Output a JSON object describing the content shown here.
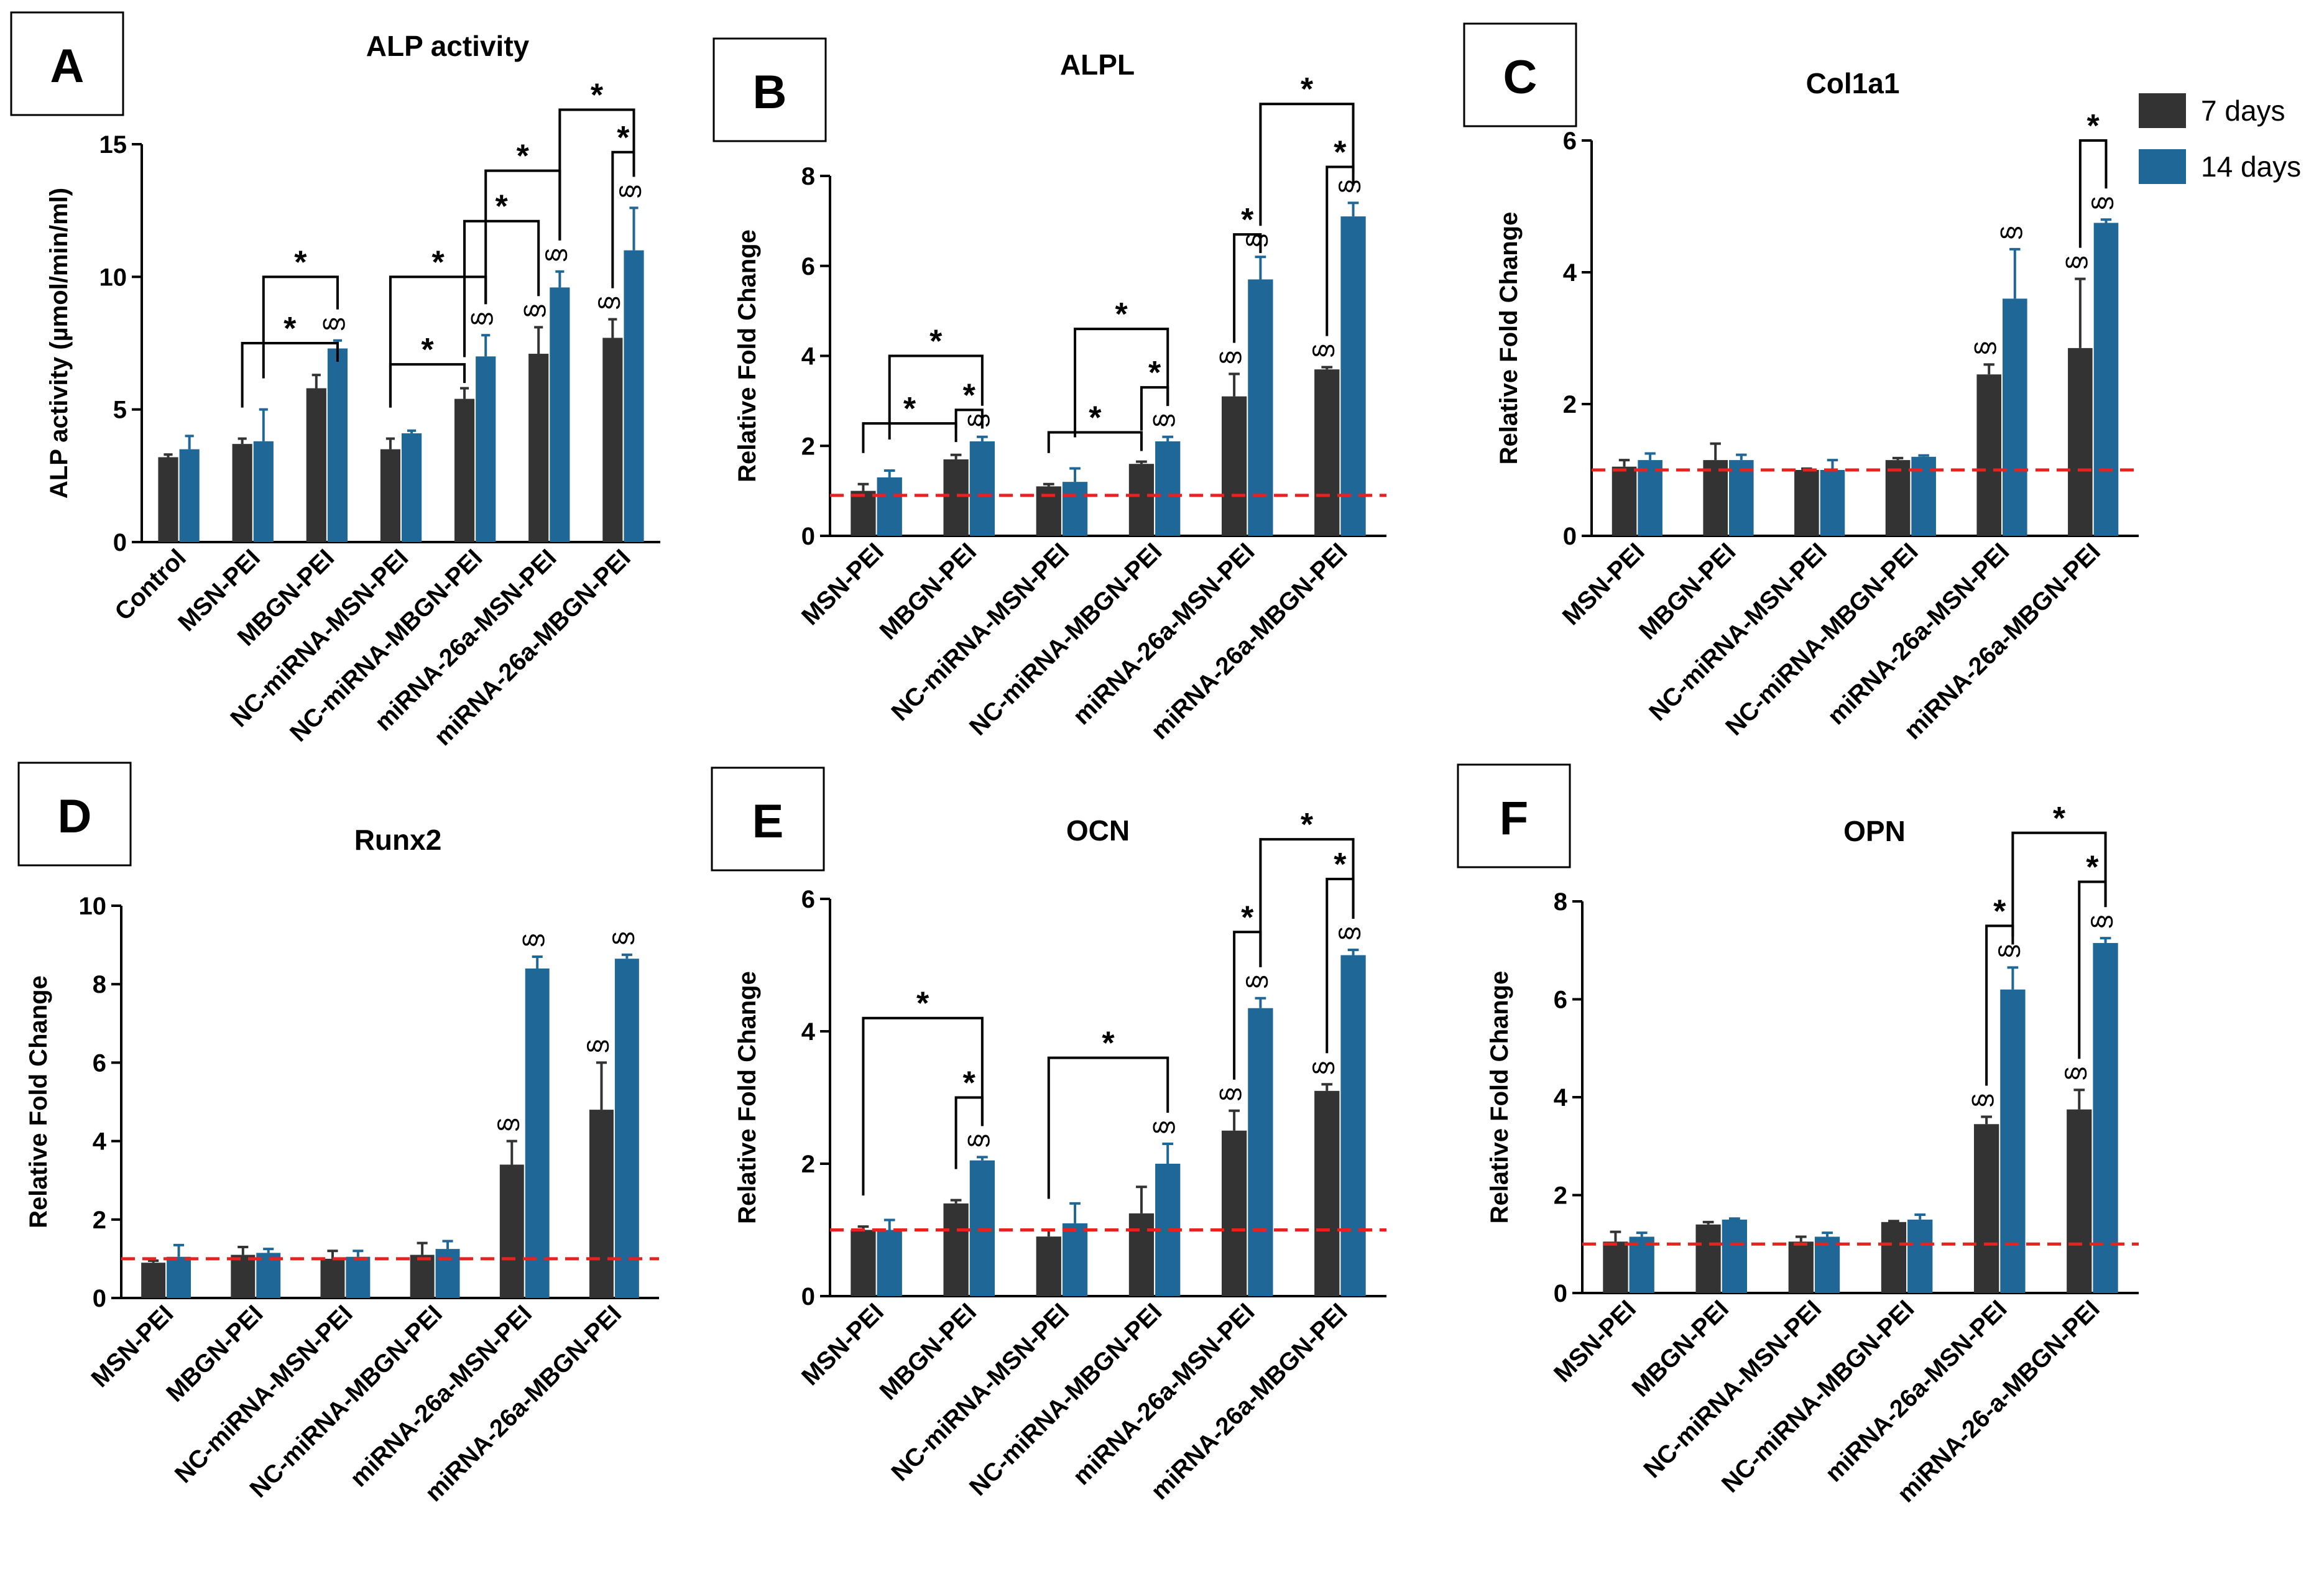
{
  "legend": {
    "items": [
      {
        "label": "7 days",
        "color": "#333333"
      },
      {
        "label": "14 days",
        "color": "#1F6796"
      }
    ]
  },
  "colors": {
    "series_7d": "#333333",
    "series_14d": "#1F6796",
    "reference_line": "#E8231F",
    "annotation": "#000000"
  },
  "chart_data": [
    {
      "panel": "A",
      "type": "bar",
      "title": "ALP activity",
      "ylabel": "ALP activity (µmol/min/ml)",
      "ylim": [
        0,
        15
      ],
      "yticks": [
        0,
        5,
        10,
        15
      ],
      "reference_line": null,
      "categories": [
        "Control",
        "MSN-PEI",
        "MBGN-PEI",
        "NC-miRNA-MSN-PEI",
        "NC-miRNA-MBGN-PEI",
        "miRNA-26a-MSN-PEI",
        "miRNA-26a-MBGN-PEI"
      ],
      "series": [
        {
          "name": "7 days",
          "values": [
            3.2,
            3.7,
            5.8,
            3.5,
            5.4,
            7.1,
            7.7
          ],
          "errors": [
            0.1,
            0.2,
            0.5,
            0.4,
            0.4,
            1.0,
            0.7
          ],
          "marks": [
            "",
            "",
            "",
            "",
            "",
            "§",
            "§"
          ]
        },
        {
          "name": "14 days",
          "values": [
            3.5,
            3.8,
            7.3,
            4.1,
            7.0,
            9.6,
            11.0
          ],
          "errors": [
            0.5,
            1.2,
            0.3,
            0.1,
            0.8,
            0.6,
            1.6
          ],
          "marks": [
            "",
            "",
            "§",
            "",
            "§",
            "§",
            "§"
          ]
        }
      ],
      "brackets": [
        {
          "from": [
            1,
            0
          ],
          "to": [
            2,
            1
          ],
          "level": 7.5,
          "label": "*"
        },
        {
          "from": [
            1,
            1
          ],
          "to": [
            2,
            1
          ],
          "level": 10.0,
          "label": "*"
        },
        {
          "from": [
            3,
            0
          ],
          "to": [
            4,
            0
          ],
          "level": 6.7,
          "label": "*"
        },
        {
          "from": [
            3,
            0
          ],
          "to": [
            4,
            1
          ],
          "level": 10.0,
          "label": "*"
        },
        {
          "from": [
            4,
            0
          ],
          "to": [
            5,
            0
          ],
          "level": 12.1,
          "label": "*"
        },
        {
          "from": [
            4,
            1
          ],
          "to": [
            5,
            1
          ],
          "level": 14.0,
          "label": "*"
        },
        {
          "from": [
            6,
            0
          ],
          "to": [
            6,
            1
          ],
          "level": 14.7,
          "label": "*"
        },
        {
          "from": [
            5,
            1
          ],
          "to": [
            6,
            1
          ],
          "level": 16.3,
          "label": "*"
        }
      ]
    },
    {
      "panel": "B",
      "type": "bar",
      "title": "ALPL",
      "ylabel": "Relative Fold Change",
      "ylim": [
        0,
        8
      ],
      "yticks": [
        0,
        2,
        4,
        6,
        8
      ],
      "reference_line": 0.9,
      "categories": [
        "MSN-PEI",
        "MBGN-PEI",
        "NC-miRNA-MSN-PEI",
        "NC-miRNA-MBGN-PEI",
        "miRNA-26a-MSN-PEI",
        "miRNA-26a-MBGN-PEI"
      ],
      "series": [
        {
          "name": "7 days",
          "values": [
            1.0,
            1.7,
            1.1,
            1.6,
            3.1,
            3.7
          ],
          "errors": [
            0.15,
            0.1,
            0.05,
            0.05,
            0.5,
            0.05
          ],
          "marks": [
            "",
            "",
            "",
            "",
            "§",
            "§"
          ]
        },
        {
          "name": "14 days",
          "values": [
            1.3,
            2.1,
            1.2,
            2.1,
            5.7,
            7.1
          ],
          "errors": [
            0.15,
            0.1,
            0.3,
            0.1,
            0.5,
            0.3
          ],
          "marks": [
            "",
            "§",
            "",
            "§",
            "§",
            "§"
          ]
        }
      ],
      "brackets": [
        {
          "from": [
            0,
            0
          ],
          "to": [
            1,
            0
          ],
          "level": 2.5,
          "label": "*"
        },
        {
          "from": [
            0,
            1
          ],
          "to": [
            1,
            1
          ],
          "level": 4.0,
          "label": "*"
        },
        {
          "from": [
            1,
            0
          ],
          "to": [
            1,
            1
          ],
          "level": 2.8,
          "label": "*"
        },
        {
          "from": [
            2,
            0
          ],
          "to": [
            3,
            0
          ],
          "level": 2.3,
          "label": "*"
        },
        {
          "from": [
            2,
            1
          ],
          "to": [
            3,
            1
          ],
          "level": 4.6,
          "label": "*"
        },
        {
          "from": [
            3,
            0
          ],
          "to": [
            3,
            1
          ],
          "level": 3.3,
          "label": "*"
        },
        {
          "from": [
            4,
            0
          ],
          "to": [
            4,
            1
          ],
          "level": 6.7,
          "label": "*"
        },
        {
          "from": [
            5,
            0
          ],
          "to": [
            5,
            1
          ],
          "level": 8.2,
          "label": "*"
        },
        {
          "from": [
            4,
            1
          ],
          "to": [
            5,
            1
          ],
          "level": 9.6,
          "label": "*"
        }
      ]
    },
    {
      "panel": "C",
      "type": "bar",
      "title": "Col1a1",
      "ylabel": "Relative Fold Change",
      "ylim": [
        0,
        6
      ],
      "yticks": [
        0,
        2,
        4,
        6
      ],
      "reference_line": 1.0,
      "categories": [
        "MSN-PEI",
        "MBGN-PEI",
        "NC-miRNA-MSN-PEI",
        "NC-miRNA-MBGN-PEI",
        "miRNA-26a-MSN-PEI",
        "miRNA-26a-MBGN-PEI"
      ],
      "series": [
        {
          "name": "7 days",
          "values": [
            1.05,
            1.15,
            1.0,
            1.15,
            2.45,
            2.85
          ],
          "errors": [
            0.1,
            0.25,
            0.02,
            0.03,
            0.15,
            1.05
          ],
          "marks": [
            "",
            "",
            "",
            "",
            "§",
            "§"
          ]
        },
        {
          "name": "14 days",
          "values": [
            1.15,
            1.15,
            1.0,
            1.2,
            3.6,
            4.75
          ],
          "errors": [
            0.1,
            0.08,
            0.15,
            0.02,
            0.75,
            0.05
          ],
          "marks": [
            "",
            "",
            "",
            "",
            "§",
            "§"
          ]
        }
      ],
      "brackets": [
        {
          "from": [
            5,
            0
          ],
          "to": [
            5,
            1
          ],
          "level": 6.0,
          "label": "*"
        }
      ]
    },
    {
      "panel": "D",
      "type": "bar",
      "title": "Runx2",
      "ylabel": "Relative Fold Change",
      "ylim": [
        0,
        10
      ],
      "yticks": [
        0,
        2,
        4,
        6,
        8,
        10
      ],
      "reference_line": 1.0,
      "categories": [
        "MSN-PEI",
        "MBGN-PEI",
        "NC-miRNA-MSN-PEI",
        "NC-miRNA-MBGN-PEI",
        "miRNA-26a-MSN-PEI",
        "miRNA-26a-MBGN-PEI"
      ],
      "series": [
        {
          "name": "7 days",
          "values": [
            0.9,
            1.1,
            1.0,
            1.1,
            3.4,
            4.8
          ],
          "errors": [
            0.05,
            0.2,
            0.2,
            0.3,
            0.6,
            1.2
          ],
          "marks": [
            "",
            "",
            "",
            "",
            "§",
            "§"
          ]
        },
        {
          "name": "14 days",
          "values": [
            1.05,
            1.15,
            1.05,
            1.25,
            8.4,
            8.65
          ],
          "errors": [
            0.3,
            0.1,
            0.15,
            0.2,
            0.3,
            0.1
          ],
          "marks": [
            "",
            "",
            "",
            "",
            "§",
            "§"
          ]
        }
      ],
      "brackets": []
    },
    {
      "panel": "E",
      "type": "bar",
      "title": "OCN",
      "ylabel": "Relative Fold Change",
      "ylim": [
        0,
        6
      ],
      "yticks": [
        0,
        2,
        4,
        6
      ],
      "reference_line": 1.0,
      "categories": [
        "MSN-PEI",
        "MBGN-PEI",
        "NC-miRNA-MSN-PEI",
        "NC-miRNA-MBGN-PEI",
        "miRNA-26a-MSN-PEI",
        "miRNA-26a-MBGN-PEI"
      ],
      "series": [
        {
          "name": "7 days",
          "values": [
            1.0,
            1.4,
            0.9,
            1.25,
            2.5,
            3.1
          ],
          "errors": [
            0.05,
            0.05,
            0.1,
            0.4,
            0.3,
            0.1
          ],
          "marks": [
            "",
            "",
            "",
            "",
            "§",
            "§"
          ]
        },
        {
          "name": "14 days",
          "values": [
            1.0,
            2.05,
            1.1,
            2.0,
            4.35,
            5.15
          ],
          "errors": [
            0.15,
            0.05,
            0.3,
            0.3,
            0.15,
            0.08
          ],
          "marks": [
            "",
            "§",
            "",
            "§",
            "§",
            "§"
          ]
        }
      ],
      "brackets": [
        {
          "from": [
            0,
            0
          ],
          "to": [
            1,
            1
          ],
          "level": 4.2,
          "label": "*"
        },
        {
          "from": [
            1,
            0
          ],
          "to": [
            1,
            1
          ],
          "level": 3.0,
          "label": "*"
        },
        {
          "from": [
            2,
            0
          ],
          "to": [
            3,
            1
          ],
          "level": 3.6,
          "label": "*"
        },
        {
          "from": [
            4,
            0
          ],
          "to": [
            4,
            1
          ],
          "level": 5.5,
          "label": "*"
        },
        {
          "from": [
            5,
            0
          ],
          "to": [
            5,
            1
          ],
          "level": 6.3,
          "label": "*"
        },
        {
          "from": [
            4,
            1
          ],
          "to": [
            5,
            1
          ],
          "level": 6.9,
          "label": "*"
        }
      ]
    },
    {
      "panel": "F",
      "type": "bar",
      "title": "OPN",
      "ylabel": "Relative Fold Change",
      "ylim": [
        0,
        8
      ],
      "yticks": [
        0,
        2,
        4,
        6,
        8
      ],
      "reference_line": 1.0,
      "categories": [
        "MSN-PEI",
        "MBGN-PEI",
        "NC-miRNA-MSN-PEI",
        "NC-miRNA-MBGN-PEI",
        "miRNA-26a-MSN-PEI",
        "miRNA-26-a-MBGN-PEI"
      ],
      "series": [
        {
          "name": "7 days",
          "values": [
            1.05,
            1.4,
            1.05,
            1.45,
            3.45,
            3.75
          ],
          "errors": [
            0.2,
            0.05,
            0.1,
            0.02,
            0.15,
            0.4
          ],
          "marks": [
            "",
            "",
            "",
            "",
            "§",
            "§"
          ]
        },
        {
          "name": "14 days",
          "values": [
            1.15,
            1.5,
            1.15,
            1.5,
            6.2,
            7.15
          ],
          "errors": [
            0.08,
            0.02,
            0.08,
            0.1,
            0.45,
            0.1
          ],
          "marks": [
            "",
            "",
            "",
            "",
            "§",
            "§"
          ]
        }
      ],
      "brackets": [
        {
          "from": [
            4,
            0
          ],
          "to": [
            4,
            1
          ],
          "level": 7.5,
          "label": "*"
        },
        {
          "from": [
            5,
            0
          ],
          "to": [
            5,
            1
          ],
          "level": 8.4,
          "label": "*"
        },
        {
          "from": [
            4,
            1
          ],
          "to": [
            5,
            1
          ],
          "level": 9.4,
          "label": "*"
        }
      ]
    }
  ]
}
